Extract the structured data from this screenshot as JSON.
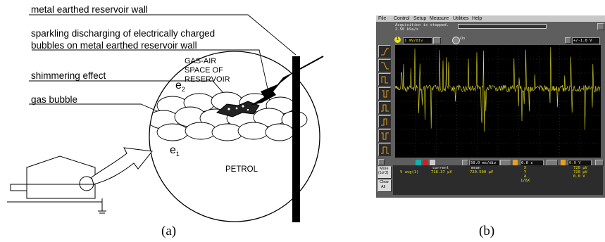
{
  "panel_a": {
    "labels": {
      "wall": "metal earthed reservoir wall",
      "sparkling_line1": "sparkling discharging of electrically charged",
      "sparkling_line2": "bubbles on metal earthed reservoir wall",
      "shimmering": "shimmering effect",
      "gas_bubble": "gas bubble",
      "gas_air_1": "GAS-AIR",
      "gas_air_2": "SPACE OF",
      "gas_air_3": "RESERVOIR",
      "e2": "e",
      "e2_sub": "2",
      "e1": "e",
      "e1_sub": "1",
      "petrol": "PETROL"
    },
    "caption": "(a)"
  },
  "panel_b": {
    "menu": [
      "File",
      "Control",
      "Setup",
      "Measure",
      "Utilities",
      "Help"
    ],
    "status_line1": "Acquisition is stopped.",
    "status_line2": "2.50 kSa/s",
    "channel_num": "1",
    "volts_div": "1 mV/div",
    "probe_label": "On",
    "offset": "+/-1.0 V",
    "time_div": "50.0 ms/div",
    "delay": "0.0 s",
    "trigger_level": "0.0 V",
    "side_more": "More",
    "side_more2": "(1of 2)",
    "side_clear": "Clear",
    "side_clear2": "All",
    "meas_name": "V avg(1)",
    "current_hdr": "current",
    "current_val": "716.37 µV",
    "mean_hdr": "mean",
    "mean_val": "720.590 µV",
    "marker_rows": [
      "X",
      "Y",
      "Δ",
      "1/ΔX"
    ],
    "marker_vals": [
      "720 µV",
      "720 µV",
      "0.0 V"
    ],
    "trace_color": "#e6e025",
    "caption": "(b)"
  }
}
